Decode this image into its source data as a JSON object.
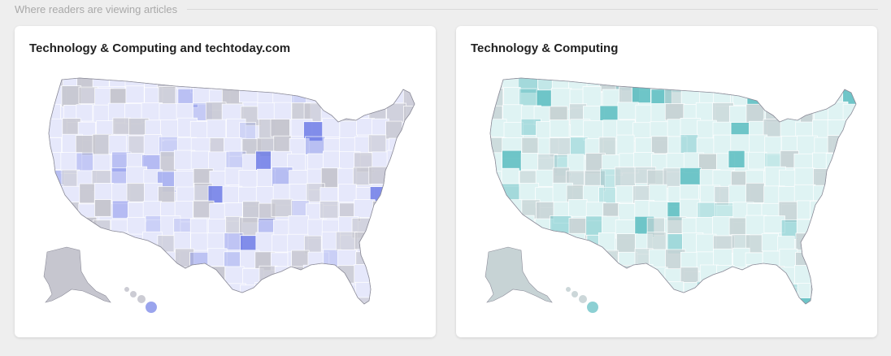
{
  "section": {
    "title": "Where readers are viewing articles"
  },
  "cards": [
    {
      "title": "Technology & Computing and techtoday.com",
      "accent": "#6f7de6",
      "light": "#e6e8fb",
      "neutral": "#c6c6cf"
    },
    {
      "title": "Technology & Computing",
      "accent": "#5bbcc0",
      "light": "#dff3f3",
      "neutral": "#c7d3d5"
    }
  ]
}
